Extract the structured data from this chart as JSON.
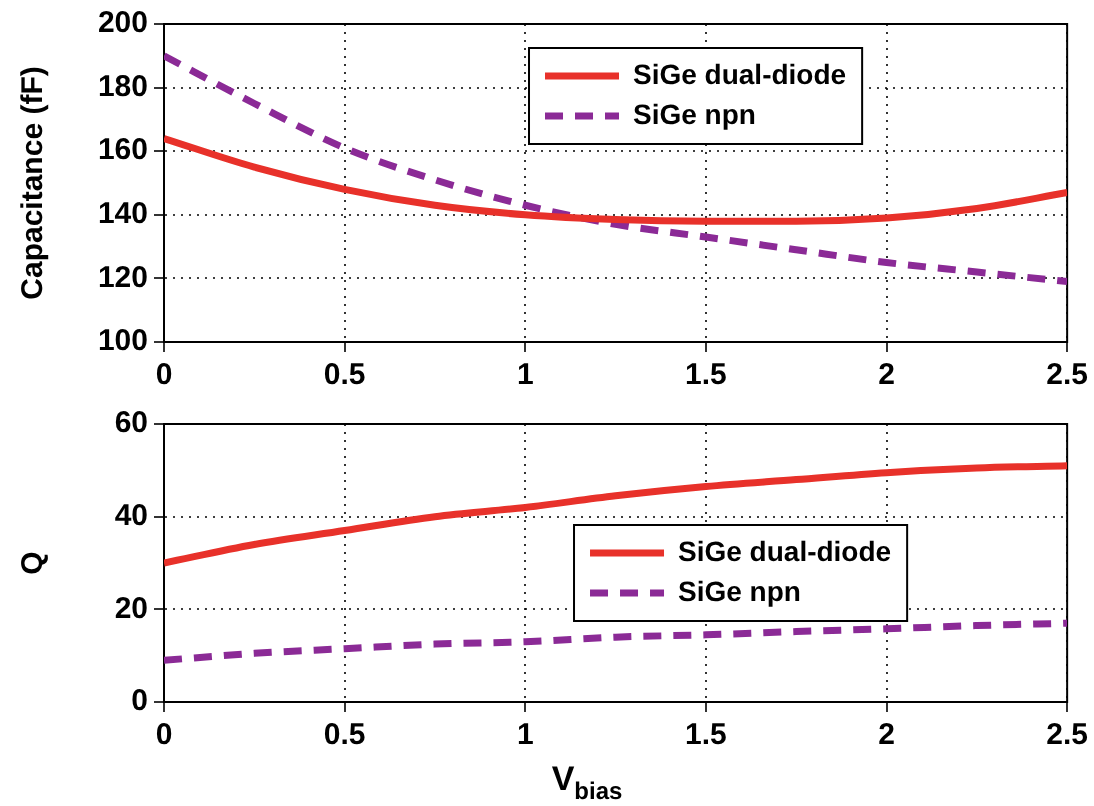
{
  "chart_data": [
    {
      "type": "line",
      "ylabel": "Capacitance (fF)",
      "x": [
        0,
        0.25,
        0.5,
        0.75,
        1,
        1.25,
        1.5,
        1.75,
        2,
        2.25,
        2.5
      ],
      "xlim": [
        0,
        2.5
      ],
      "xticks": [
        0,
        0.5,
        1,
        1.5,
        2,
        2.5
      ],
      "ylim": [
        100,
        200
      ],
      "yticks": [
        100,
        120,
        140,
        160,
        180,
        200
      ],
      "grid": true,
      "legend": "top",
      "marker": "none",
      "series": [
        {
          "name": "SiGe dual-diode",
          "color": "#e8312a",
          "line_style": "solid",
          "values": [
            164,
            155,
            148,
            143,
            140,
            138.5,
            138,
            138,
            139,
            142,
            147
          ]
        },
        {
          "name": "SiGe npn",
          "color": "#8b2a96",
          "line_style": "dashed",
          "values": [
            190,
            175,
            161,
            151,
            143,
            137,
            133,
            129,
            125,
            122,
            119
          ]
        }
      ]
    },
    {
      "type": "line",
      "ylabel": "Q",
      "xlabel": "V$_{bias}$",
      "x": [
        0,
        0.25,
        0.5,
        0.75,
        1,
        1.25,
        1.5,
        1.75,
        2,
        2.25,
        2.5
      ],
      "xlim": [
        0,
        2.5
      ],
      "xticks": [
        0,
        0.5,
        1,
        1.5,
        2,
        2.5
      ],
      "ylim": [
        0,
        60
      ],
      "yticks": [
        0,
        20,
        40,
        60
      ],
      "grid": true,
      "legend": "right",
      "marker": "none",
      "series": [
        {
          "name": "SiGe dual-diode",
          "color": "#e8312a",
          "line_style": "solid",
          "values": [
            30,
            34,
            37,
            40,
            42,
            44.5,
            46.5,
            48,
            49.5,
            50.5,
            51
          ]
        },
        {
          "name": "SiGe npn",
          "color": "#8b2a96",
          "line_style": "dashed",
          "values": [
            9,
            10.5,
            11.5,
            12.5,
            13,
            14,
            14.5,
            15.2,
            15.8,
            16.5,
            17
          ]
        }
      ]
    }
  ]
}
